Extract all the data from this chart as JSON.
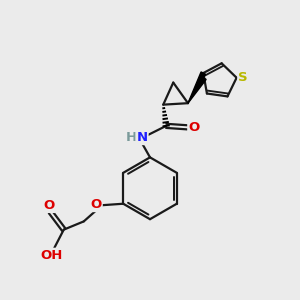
{
  "bg_color": "#ebebeb",
  "atom_colors": {
    "C": "#000000",
    "N": "#2020ff",
    "O": "#dd0000",
    "S": "#b8b800",
    "H": "#7a9a9a"
  },
  "bond_color": "#1a1a1a",
  "bond_width": 1.6,
  "font_size_atom": 9.5
}
